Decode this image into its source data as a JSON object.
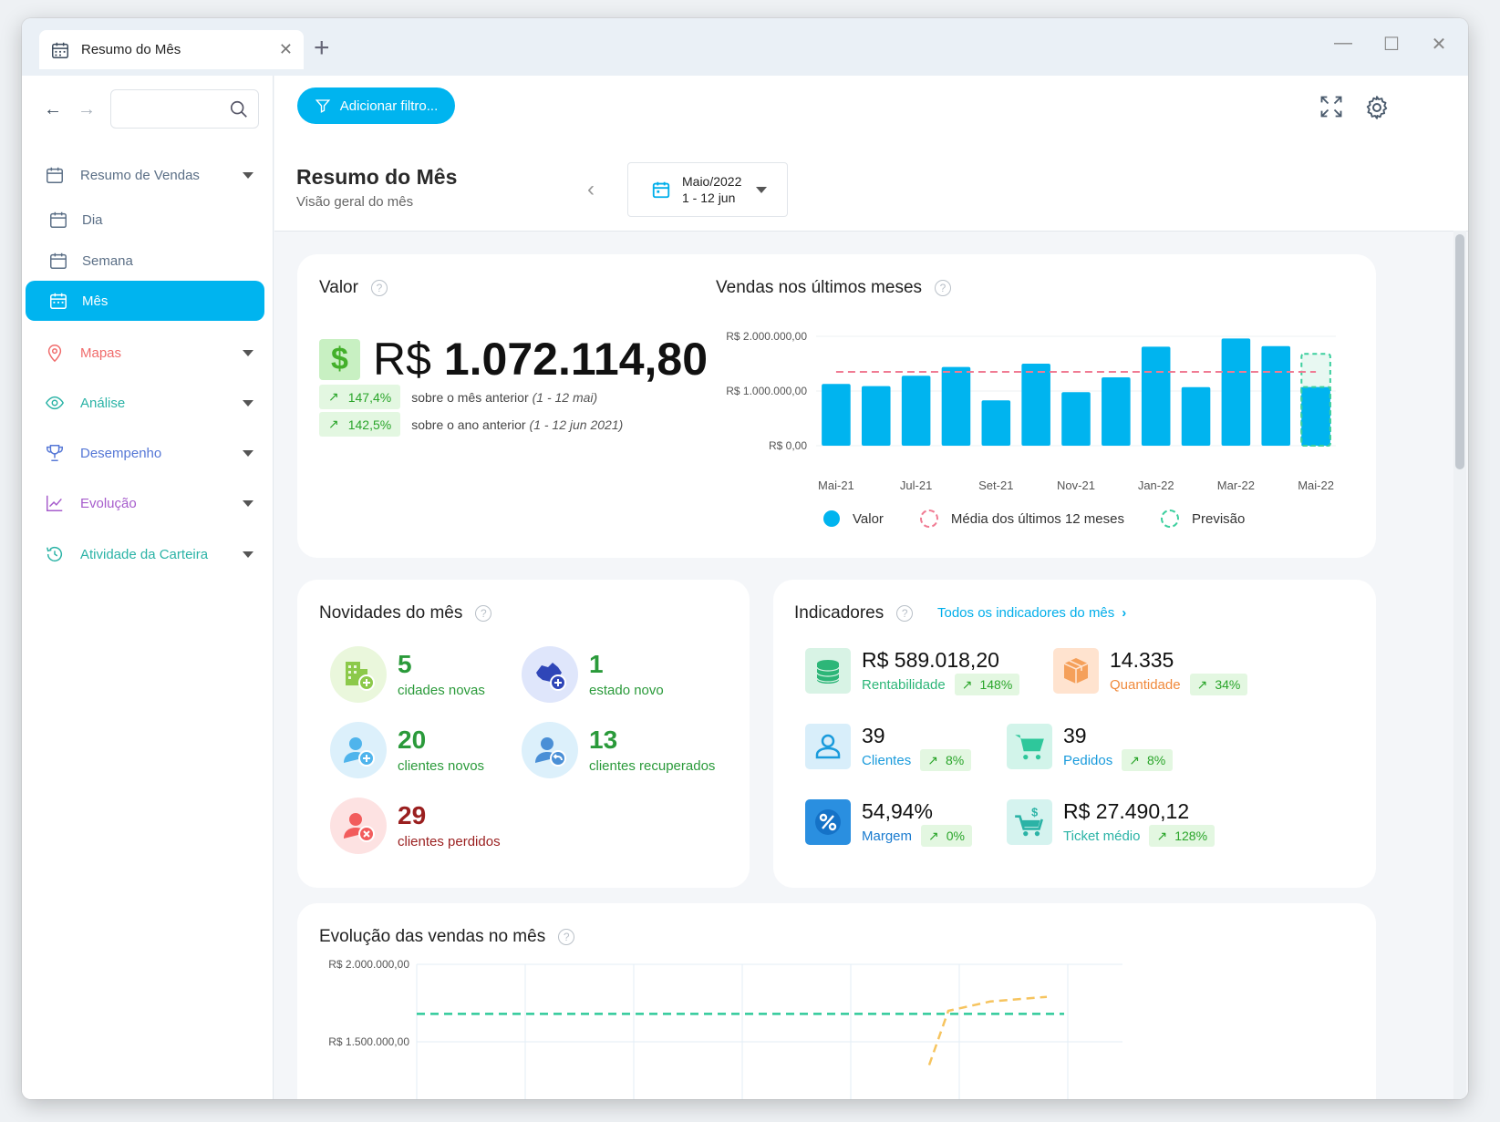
{
  "tab": {
    "title": "Resumo do Mês",
    "close": "✕"
  },
  "window": {
    "new_tab": "+",
    "minimize": "—",
    "maximize": "☐",
    "close": "✕"
  },
  "sidebar": {
    "back": "←",
    "forward": "→",
    "search_placeholder": "",
    "items": [
      {
        "label": "Resumo de Vendas",
        "color": "#5b6f86",
        "icon": "calendar-icon"
      },
      {
        "label": "Dia",
        "color": "#5b6f86",
        "icon": "calendar-icon"
      },
      {
        "label": "Semana",
        "color": "#5b6f86",
        "icon": "calendar-icon"
      },
      {
        "label": "Mês",
        "color": "#ffffff",
        "icon": "calendar-icon"
      },
      {
        "label": "Mapas",
        "color": "#f06b6b",
        "icon": "map-pin-icon"
      },
      {
        "label": "Análise",
        "color": "#2bb3a6",
        "icon": "eye-icon"
      },
      {
        "label": "Desempenho",
        "color": "#5577d6",
        "icon": "trophy-icon"
      },
      {
        "label": "Evolução",
        "color": "#a65ccc",
        "icon": "trend-icon"
      },
      {
        "label": "Atividade da Carteira",
        "color": "#2bb3a6",
        "icon": "history-icon"
      }
    ]
  },
  "header": {
    "filter_label": "Adicionar filtro...",
    "title": "Resumo do Mês",
    "subtitle": "Visão geral do mês",
    "prev": "‹",
    "period_month": "Maio/2022",
    "period_range": "1 - 12 jun"
  },
  "valor": {
    "title": "Valor",
    "currency": "R$",
    "amount": "1.072.114,80",
    "comparisons": [
      {
        "pct": "147,4%",
        "text": "sobre o mês anterior",
        "period": "(1 - 12 mai)"
      },
      {
        "pct": "142,5%",
        "text": "sobre o ano anterior",
        "period": "(1 - 12 jun 2021)"
      }
    ]
  },
  "vendas": {
    "title": "Vendas nos últimos meses",
    "legend": [
      {
        "label": "Valor",
        "color": "#00b4ef"
      },
      {
        "label": "Média dos últimos 12 meses",
        "color": "#f07b93"
      },
      {
        "label": "Previsão",
        "color": "#3ccf9e"
      }
    ]
  },
  "chart_data": [
    {
      "type": "bar",
      "title": "Vendas nos últimos meses",
      "categories": [
        "Mai-21",
        "Jun-21",
        "Jul-21",
        "Ago-21",
        "Set-21",
        "Out-21",
        "Nov-21",
        "Dez-21",
        "Jan-22",
        "Fev-22",
        "Mar-22",
        "Abr-22",
        "Mai-22"
      ],
      "tick_labels": [
        "Mai-21",
        "Jul-21",
        "Set-21",
        "Nov-21",
        "Jan-22",
        "Mar-22",
        "Mai-22"
      ],
      "y_ticks": [
        "R$ 0,00",
        "R$ 1.000.000,00",
        "R$ 2.000.000,00"
      ],
      "ylim": [
        0,
        2000000
      ],
      "series": [
        {
          "name": "Valor",
          "values": [
            1130000,
            1090000,
            1280000,
            1440000,
            830000,
            1500000,
            980000,
            1250000,
            1810000,
            1070000,
            1960000,
            1820000,
            1072114.8
          ]
        },
        {
          "name": "Média dos últimos 12 meses",
          "values": [
            1350000,
            1350000,
            1350000,
            1350000,
            1350000,
            1350000,
            1350000,
            1350000,
            1350000,
            1350000,
            1350000,
            1350000,
            1350000
          ]
        },
        {
          "name": "Previsão",
          "values": [
            null,
            null,
            null,
            null,
            null,
            null,
            null,
            null,
            null,
            null,
            null,
            null,
            1680000
          ]
        }
      ]
    },
    {
      "type": "line",
      "title": "Evolução das vendas no mês",
      "y_ticks": [
        "R$ 1.500.000,00",
        "R$ 2.000.000,00"
      ],
      "series": [
        {
          "name": "",
          "values": [
            1680000,
            1680000,
            1680000,
            1680000,
            1680000,
            1680000,
            1680000
          ]
        },
        {
          "name": "",
          "values": [
            1350000,
            1700000,
            1760000,
            1790000
          ]
        }
      ]
    }
  ],
  "novidades": {
    "title": "Novidades do mês",
    "items": [
      {
        "num": "5",
        "label": "cidades novas",
        "color": "#3aa845"
      },
      {
        "num": "1",
        "label": "estado novo",
        "color": "#3aa845"
      },
      {
        "num": "20",
        "label": "clientes novos",
        "color": "#3aa845"
      },
      {
        "num": "13",
        "label": "clientes recuperados",
        "color": "#3aa845"
      },
      {
        "num": "29",
        "label": "clientes perdidos",
        "color": "#b02121"
      }
    ]
  },
  "indicadores": {
    "title": "Indicadores",
    "link": "Todos os indicadores do mês",
    "items": [
      {
        "value": "R$ 589.018,20",
        "label": "Rentabilidade",
        "pct": "148%",
        "color": "#2db678"
      },
      {
        "value": "14.335",
        "label": "Quantidade",
        "pct": "34%",
        "color": "#f08a3c"
      },
      {
        "value": "39",
        "label": "Clientes",
        "pct": "8%",
        "color": "#1a9bdc"
      },
      {
        "value": "39",
        "label": "Pedidos",
        "pct": "8%",
        "color": "#1a9bdc"
      },
      {
        "value": "54,94%",
        "label": "Margem",
        "pct": "0%",
        "color": "#1a7bcf"
      },
      {
        "value": "R$ 27.490,12",
        "label": "Ticket médio",
        "pct": "128%",
        "color": "#2bb3a6"
      }
    ]
  },
  "evolucao": {
    "title": "Evolução das vendas no mês"
  }
}
